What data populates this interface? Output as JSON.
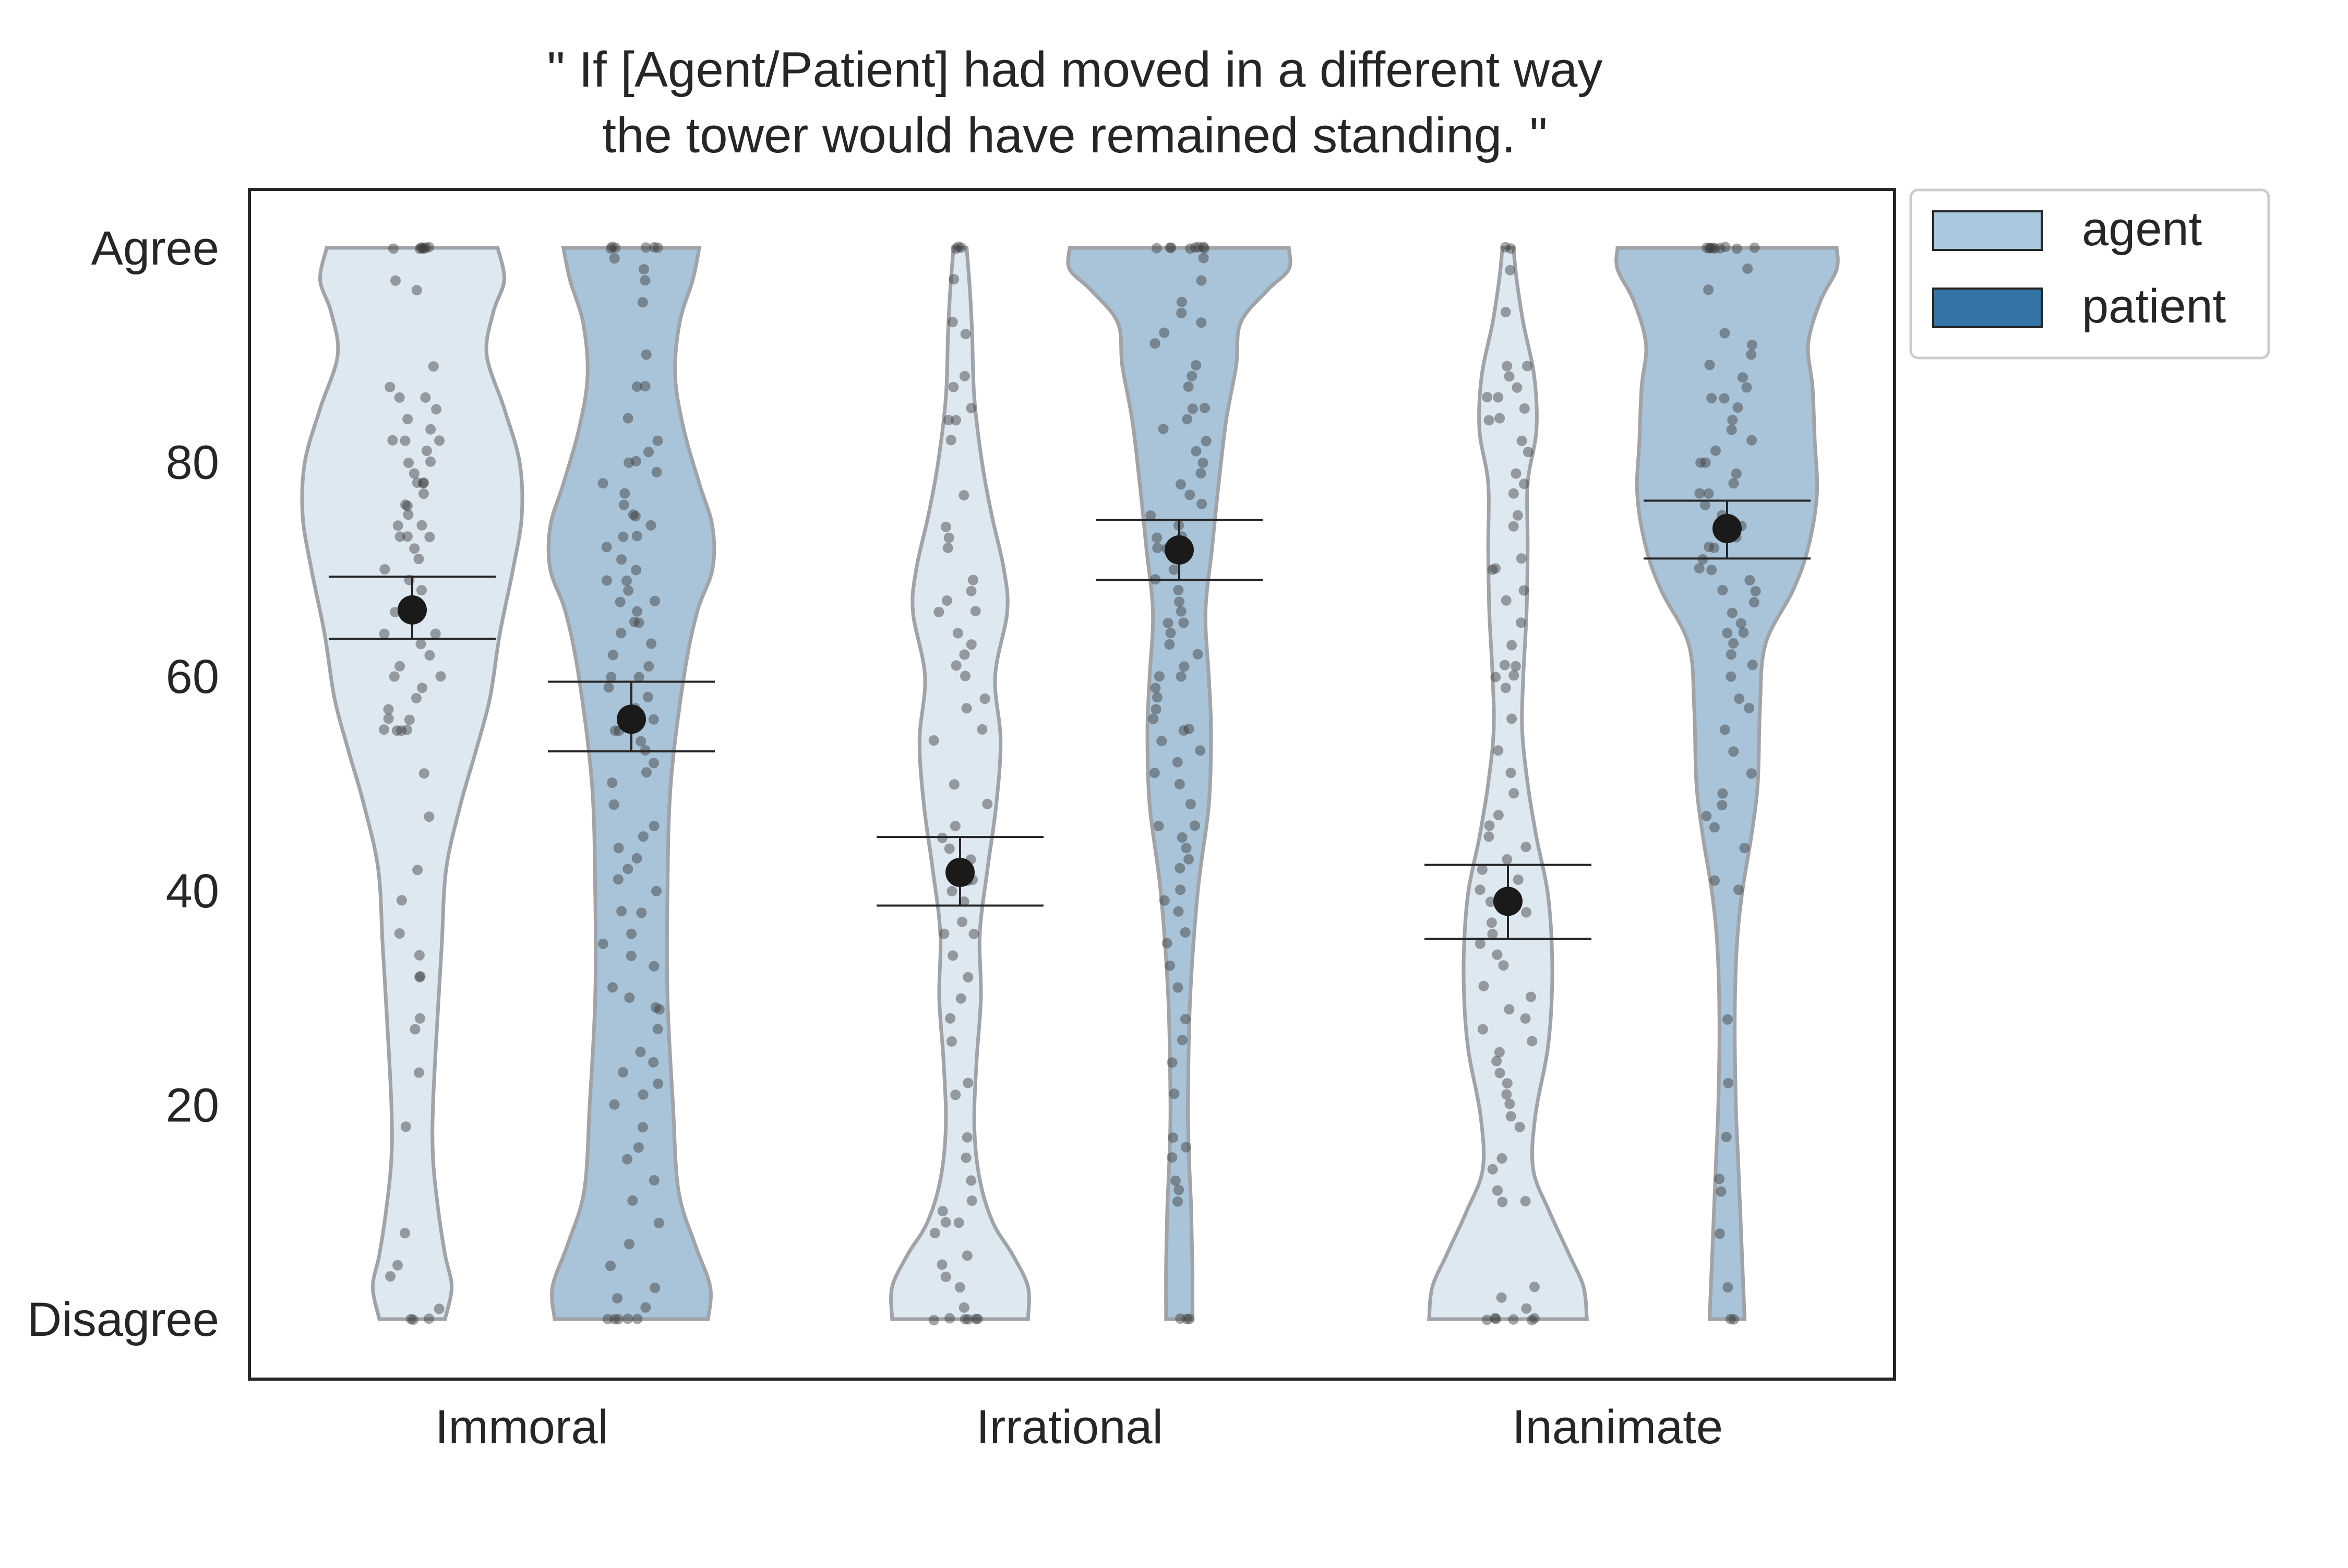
{
  "chart_data": {
    "type": "violin",
    "title_lines": [
      "\" If [Agent/Patient] had moved in a different way",
      "the tower would have remained standing. \""
    ],
    "xlabel": "",
    "ylabel": "",
    "ylim": [
      -5,
      105
    ],
    "y_ticks": [
      {
        "value": 0,
        "label": "Disagree"
      },
      {
        "value": 20,
        "label": "20"
      },
      {
        "value": 40,
        "label": "40"
      },
      {
        "value": 60,
        "label": "60"
      },
      {
        "value": 80,
        "label": "80"
      },
      {
        "value": 100,
        "label": "Agree"
      }
    ],
    "categories": [
      "Immoral",
      "Irrational",
      "Inanimate"
    ],
    "legend": {
      "placement": "outside-top-right",
      "entries": [
        {
          "label": "agent",
          "color": "#a9c9df"
        },
        {
          "label": "patient",
          "color": "#3474a6"
        }
      ]
    },
    "colors": {
      "agent_fill": "#dde8f0",
      "patient_fill": "#a9c3d8",
      "violin_edge": "#a0a4a8",
      "point": "#3a3a3a",
      "mean": "#1a1a1a"
    },
    "series": [
      {
        "name": "agent",
        "means": [
          66.2,
          41.7,
          39.0
        ],
        "ci": [
          [
            63.5,
            69.3
          ],
          [
            38.6,
            45.0
          ],
          [
            35.5,
            42.4
          ]
        ],
        "density": [
          [
            [
              0,
              0.3
            ],
            [
              3,
              0.36
            ],
            [
              6,
              0.3
            ],
            [
              10,
              0.24
            ],
            [
              15,
              0.19
            ],
            [
              20,
              0.19
            ],
            [
              28,
              0.23
            ],
            [
              35,
              0.27
            ],
            [
              42,
              0.31
            ],
            [
              48,
              0.44
            ],
            [
              53,
              0.58
            ],
            [
              58,
              0.71
            ],
            [
              64,
              0.8
            ],
            [
              70,
              0.92
            ],
            [
              75,
              1.0
            ],
            [
              80,
              0.98
            ],
            [
              85,
              0.84
            ],
            [
              90,
              0.68
            ],
            [
              94,
              0.74
            ],
            [
              97,
              0.84
            ],
            [
              100,
              0.78
            ]
          ],
          [
            [
              0,
              0.62
            ],
            [
              3,
              0.62
            ],
            [
              6,
              0.48
            ],
            [
              9,
              0.3
            ],
            [
              13,
              0.18
            ],
            [
              18,
              0.13
            ],
            [
              24,
              0.15
            ],
            [
              30,
              0.19
            ],
            [
              36,
              0.18
            ],
            [
              42,
              0.25
            ],
            [
              48,
              0.33
            ],
            [
              54,
              0.37
            ],
            [
              60,
              0.32
            ],
            [
              66,
              0.43
            ],
            [
              70,
              0.4
            ],
            [
              75,
              0.29
            ],
            [
              80,
              0.2
            ],
            [
              86,
              0.13
            ],
            [
              92,
              0.11
            ],
            [
              96,
              0.09
            ],
            [
              100,
              0.06
            ]
          ],
          [
            [
              0,
              0.72
            ],
            [
              3,
              0.69
            ],
            [
              6,
              0.56
            ],
            [
              10,
              0.38
            ],
            [
              14,
              0.23
            ],
            [
              19,
              0.25
            ],
            [
              25,
              0.36
            ],
            [
              30,
              0.4
            ],
            [
              35,
              0.4
            ],
            [
              40,
              0.36
            ],
            [
              45,
              0.26
            ],
            [
              50,
              0.18
            ],
            [
              55,
              0.13
            ],
            [
              60,
              0.14
            ],
            [
              66,
              0.17
            ],
            [
              72,
              0.18
            ],
            [
              78,
              0.18
            ],
            [
              83,
              0.26
            ],
            [
              88,
              0.24
            ],
            [
              93,
              0.14
            ],
            [
              97,
              0.08
            ],
            [
              100,
              0.05
            ]
          ]
        ],
        "points": [
          [
            100,
            100,
            100,
            100,
            100,
            100,
            100,
            96,
            97,
            89,
            87,
            86,
            86,
            85,
            84,
            83,
            82,
            82,
            82,
            81,
            80,
            80,
            79,
            78,
            78,
            78,
            77,
            76,
            76,
            75,
            74,
            74,
            73,
            73,
            73,
            72,
            71,
            70,
            69,
            68,
            67,
            66,
            64,
            64,
            63,
            62,
            61,
            60,
            60,
            59,
            58,
            57,
            56,
            56,
            55,
            55,
            55,
            55,
            51,
            47,
            42,
            39,
            36,
            34,
            32,
            32,
            28,
            27,
            23,
            18,
            8,
            5,
            4,
            1,
            0,
            0,
            0
          ],
          [
            100,
            100,
            100,
            97,
            93,
            92,
            88,
            87,
            85,
            84,
            84,
            82,
            77,
            74,
            73,
            72,
            69,
            68,
            67,
            66,
            66,
            64,
            63,
            62,
            61,
            60,
            58,
            57,
            55,
            54,
            50,
            48,
            46,
            45,
            44,
            43,
            41,
            41,
            40,
            39,
            37,
            36,
            36,
            34,
            32,
            30,
            28,
            26,
            22,
            21,
            17,
            15,
            13,
            11,
            10,
            9,
            9,
            8,
            6,
            5,
            4,
            3,
            1,
            0,
            0,
            0,
            0,
            0,
            0
          ],
          [
            100,
            100,
            98,
            94,
            89,
            89,
            88,
            87,
            86,
            86,
            85,
            84,
            84,
            82,
            81,
            79,
            78,
            77,
            75,
            74,
            71,
            70,
            70,
            68,
            67,
            65,
            63,
            61,
            61,
            60,
            60,
            59,
            56,
            53,
            51,
            49,
            47,
            46,
            45,
            44,
            43,
            42,
            41,
            40,
            39,
            38,
            37,
            36,
            35,
            34,
            33,
            31,
            30,
            29,
            28,
            27,
            26,
            25,
            24,
            23,
            22,
            21,
            20,
            19,
            18,
            15,
            14,
            12,
            11,
            11,
            3,
            2,
            1,
            0,
            0,
            0,
            0,
            0,
            0
          ]
        ]
      },
      {
        "name": "patient",
        "means": [
          56.0,
          71.8,
          73.8
        ],
        "ci": [
          [
            53.0,
            59.5
          ],
          [
            69.0,
            74.6
          ],
          [
            71.0,
            76.4
          ]
        ],
        "density": [
          [
            [
              0,
              0.7
            ],
            [
              3,
              0.72
            ],
            [
              7,
              0.58
            ],
            [
              12,
              0.43
            ],
            [
              20,
              0.38
            ],
            [
              30,
              0.33
            ],
            [
              40,
              0.33
            ],
            [
              50,
              0.36
            ],
            [
              60,
              0.48
            ],
            [
              66,
              0.6
            ],
            [
              70,
              0.74
            ],
            [
              74,
              0.74
            ],
            [
              78,
              0.62
            ],
            [
              83,
              0.48
            ],
            [
              88,
              0.4
            ],
            [
              93,
              0.44
            ],
            [
              97,
              0.56
            ],
            [
              100,
              0.62
            ]
          ],
          [
            [
              0,
              0.12
            ],
            [
              5,
              0.12
            ],
            [
              10,
              0.11
            ],
            [
              15,
              0.09
            ],
            [
              20,
              0.08
            ],
            [
              30,
              0.1
            ],
            [
              40,
              0.17
            ],
            [
              48,
              0.27
            ],
            [
              55,
              0.29
            ],
            [
              60,
              0.27
            ],
            [
              66,
              0.24
            ],
            [
              72,
              0.3
            ],
            [
              78,
              0.36
            ],
            [
              84,
              0.43
            ],
            [
              89,
              0.52
            ],
            [
              93,
              0.56
            ],
            [
              96,
              0.8
            ],
            [
              98,
              1.0
            ],
            [
              100,
              1.0
            ]
          ],
          [
            [
              0,
              0.16
            ],
            [
              5,
              0.14
            ],
            [
              10,
              0.12
            ],
            [
              15,
              0.1
            ],
            [
              20,
              0.08
            ],
            [
              28,
              0.07
            ],
            [
              35,
              0.09
            ],
            [
              40,
              0.14
            ],
            [
              45,
              0.22
            ],
            [
              50,
              0.28
            ],
            [
              57,
              0.3
            ],
            [
              63,
              0.35
            ],
            [
              68,
              0.6
            ],
            [
              72,
              0.74
            ],
            [
              77,
              0.82
            ],
            [
              82,
              0.8
            ],
            [
              87,
              0.78
            ],
            [
              91,
              0.74
            ],
            [
              95,
              0.85
            ],
            [
              98,
              1.0
            ],
            [
              100,
              1.0
            ]
          ]
        ],
        "points": [
          [
            100,
            100,
            100,
            100,
            100,
            100,
            99,
            98,
            97,
            95,
            90,
            87,
            87,
            84,
            82,
            81,
            80,
            80,
            79,
            78,
            77,
            76,
            75,
            75,
            74,
            73,
            73,
            72,
            71,
            70,
            69,
            69,
            68,
            67,
            67,
            66,
            65,
            65,
            64,
            63,
            62,
            61,
            60,
            60,
            59,
            58,
            57,
            56,
            55,
            55,
            54,
            53,
            52,
            51,
            50,
            48,
            46,
            45,
            44,
            43,
            42,
            41,
            40,
            38,
            38,
            36,
            35,
            34,
            33,
            31,
            30,
            29,
            29,
            27,
            25,
            24,
            23,
            22,
            21,
            20,
            18,
            16,
            15,
            13,
            11,
            9,
            7,
            5,
            3,
            2,
            1,
            0,
            0,
            0,
            0,
            0
          ],
          [
            100,
            100,
            100,
            100,
            100,
            100,
            100,
            100,
            99,
            97,
            95,
            94,
            93,
            92,
            91,
            89,
            88,
            87,
            85,
            85,
            84,
            83,
            82,
            81,
            80,
            79,
            78,
            77,
            76,
            75,
            74,
            73,
            73,
            72,
            72,
            71,
            70,
            69,
            68,
            67,
            66,
            65,
            65,
            64,
            63,
            62,
            61,
            60,
            60,
            59,
            58,
            57,
            56,
            55,
            55,
            54,
            53,
            52,
            51,
            50,
            48,
            46,
            46,
            45,
            44,
            43,
            42,
            40,
            39,
            38,
            36,
            35,
            33,
            31,
            28,
            26,
            24,
            21,
            17,
            16,
            15,
            13,
            12,
            11,
            0,
            0,
            0
          ],
          [
            100,
            100,
            100,
            100,
            100,
            100,
            100,
            100,
            100,
            98,
            96,
            92,
            91,
            90,
            89,
            88,
            87,
            86,
            86,
            85,
            84,
            83,
            82,
            81,
            80,
            80,
            79,
            78,
            77,
            77,
            76,
            75,
            74,
            73,
            72,
            72,
            71,
            70,
            70,
            69,
            68,
            68,
            67,
            66,
            65,
            64,
            64,
            63,
            62,
            61,
            60,
            58,
            57,
            55,
            53,
            51,
            49,
            48,
            47,
            46,
            44,
            41,
            40,
            28,
            22,
            17,
            13,
            12,
            8,
            3,
            0,
            0
          ]
        ]
      }
    ]
  }
}
